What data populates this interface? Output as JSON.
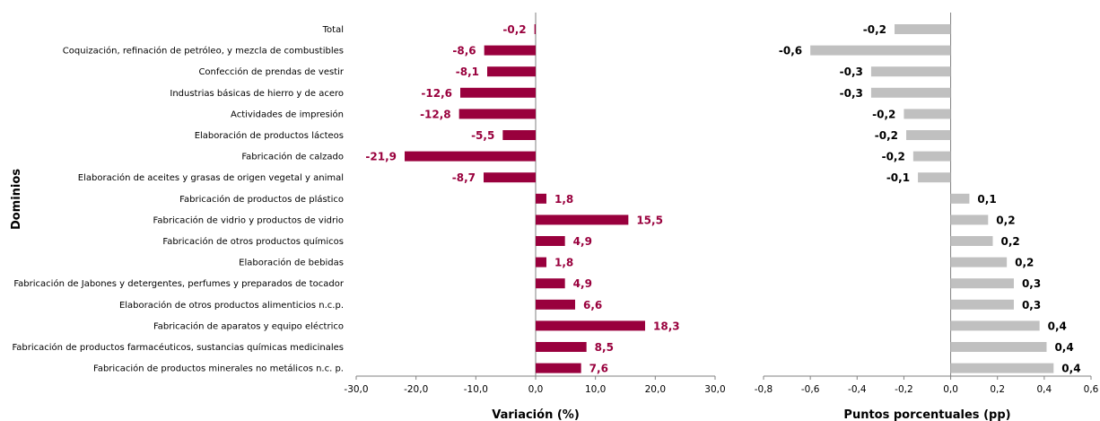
{
  "y_axis_title": "Dominios",
  "colors": {
    "left_bars": "#99003d",
    "right_bars": "#c0c0c0",
    "left_labels": "#99003d",
    "right_labels": "#000000",
    "axis": "#808080"
  },
  "chart_data": [
    {
      "type": "bar",
      "orientation": "horizontal",
      "xlabel": "Variación (%)",
      "ylabel": "Dominios",
      "xlim": [
        -30,
        30
      ],
      "xticks": [
        "-30,0",
        "-20,0",
        "-10,0",
        "0,0",
        "10,0",
        "20,0",
        "30,0"
      ],
      "grid": false,
      "categories": [
        "Total",
        "Coquización, refinación de petróleo, y mezcla de combustibles",
        "Confección de prendas de vestir",
        "Industrias básicas de hierro y de acero",
        "Actividades de impresión",
        "Elaboración de productos lácteos",
        "Fabricación de calzado",
        "Elaboración de aceites y grasas de origen vegetal y animal",
        "Fabricación de productos de plástico",
        "Fabricación de vidrio y productos de vidrio",
        "Fabricación de otros productos químicos",
        "Elaboración de bebidas",
        "Fabricación de Jabones y detergentes, perfumes y preparados de tocador",
        "Elaboración de otros productos alimenticios n.c.p.",
        "Fabricación de aparatos y equipo eléctrico",
        "Fabricación de productos farmacéuticos, sustancias químicas medicinales",
        "Fabricación de productos minerales no metálicos n.c. p."
      ],
      "values": [
        -0.2,
        -8.6,
        -8.1,
        -12.6,
        -12.8,
        -5.5,
        -21.9,
        -8.7,
        1.8,
        15.5,
        4.9,
        1.8,
        4.9,
        6.6,
        18.3,
        8.5,
        7.6
      ],
      "labels": [
        "-0,2",
        "-8,6",
        "-8,1",
        "-12,6",
        "-12,8",
        "-5,5",
        "-21,9",
        "-8,7",
        "1,8",
        "15,5",
        "4,9",
        "1,8",
        "4,9",
        "6,6",
        "18,3",
        "8,5",
        "7,6"
      ]
    },
    {
      "type": "bar",
      "orientation": "horizontal",
      "xlabel": "Puntos porcentuales (pp)",
      "xlim": [
        -0.8,
        0.6
      ],
      "xticks": [
        "-0,8",
        "-0,6",
        "-0,4",
        "-0,2",
        "0,0",
        "0,2",
        "0,4",
        "0,6"
      ],
      "grid": false,
      "values": [
        -0.24,
        -0.6,
        -0.34,
        -0.34,
        -0.2,
        -0.19,
        -0.16,
        -0.14,
        0.08,
        0.16,
        0.18,
        0.24,
        0.27,
        0.27,
        0.38,
        0.41,
        0.44
      ],
      "labels": [
        "-0,2",
        "-0,6",
        "-0,3",
        "-0,3",
        "-0,2",
        "-0,2",
        "-0,2",
        "-0,1",
        "0,1",
        "0,2",
        "0,2",
        "0,2",
        "0,3",
        "0,3",
        "0,4",
        "0,4",
        "0,4"
      ]
    }
  ]
}
